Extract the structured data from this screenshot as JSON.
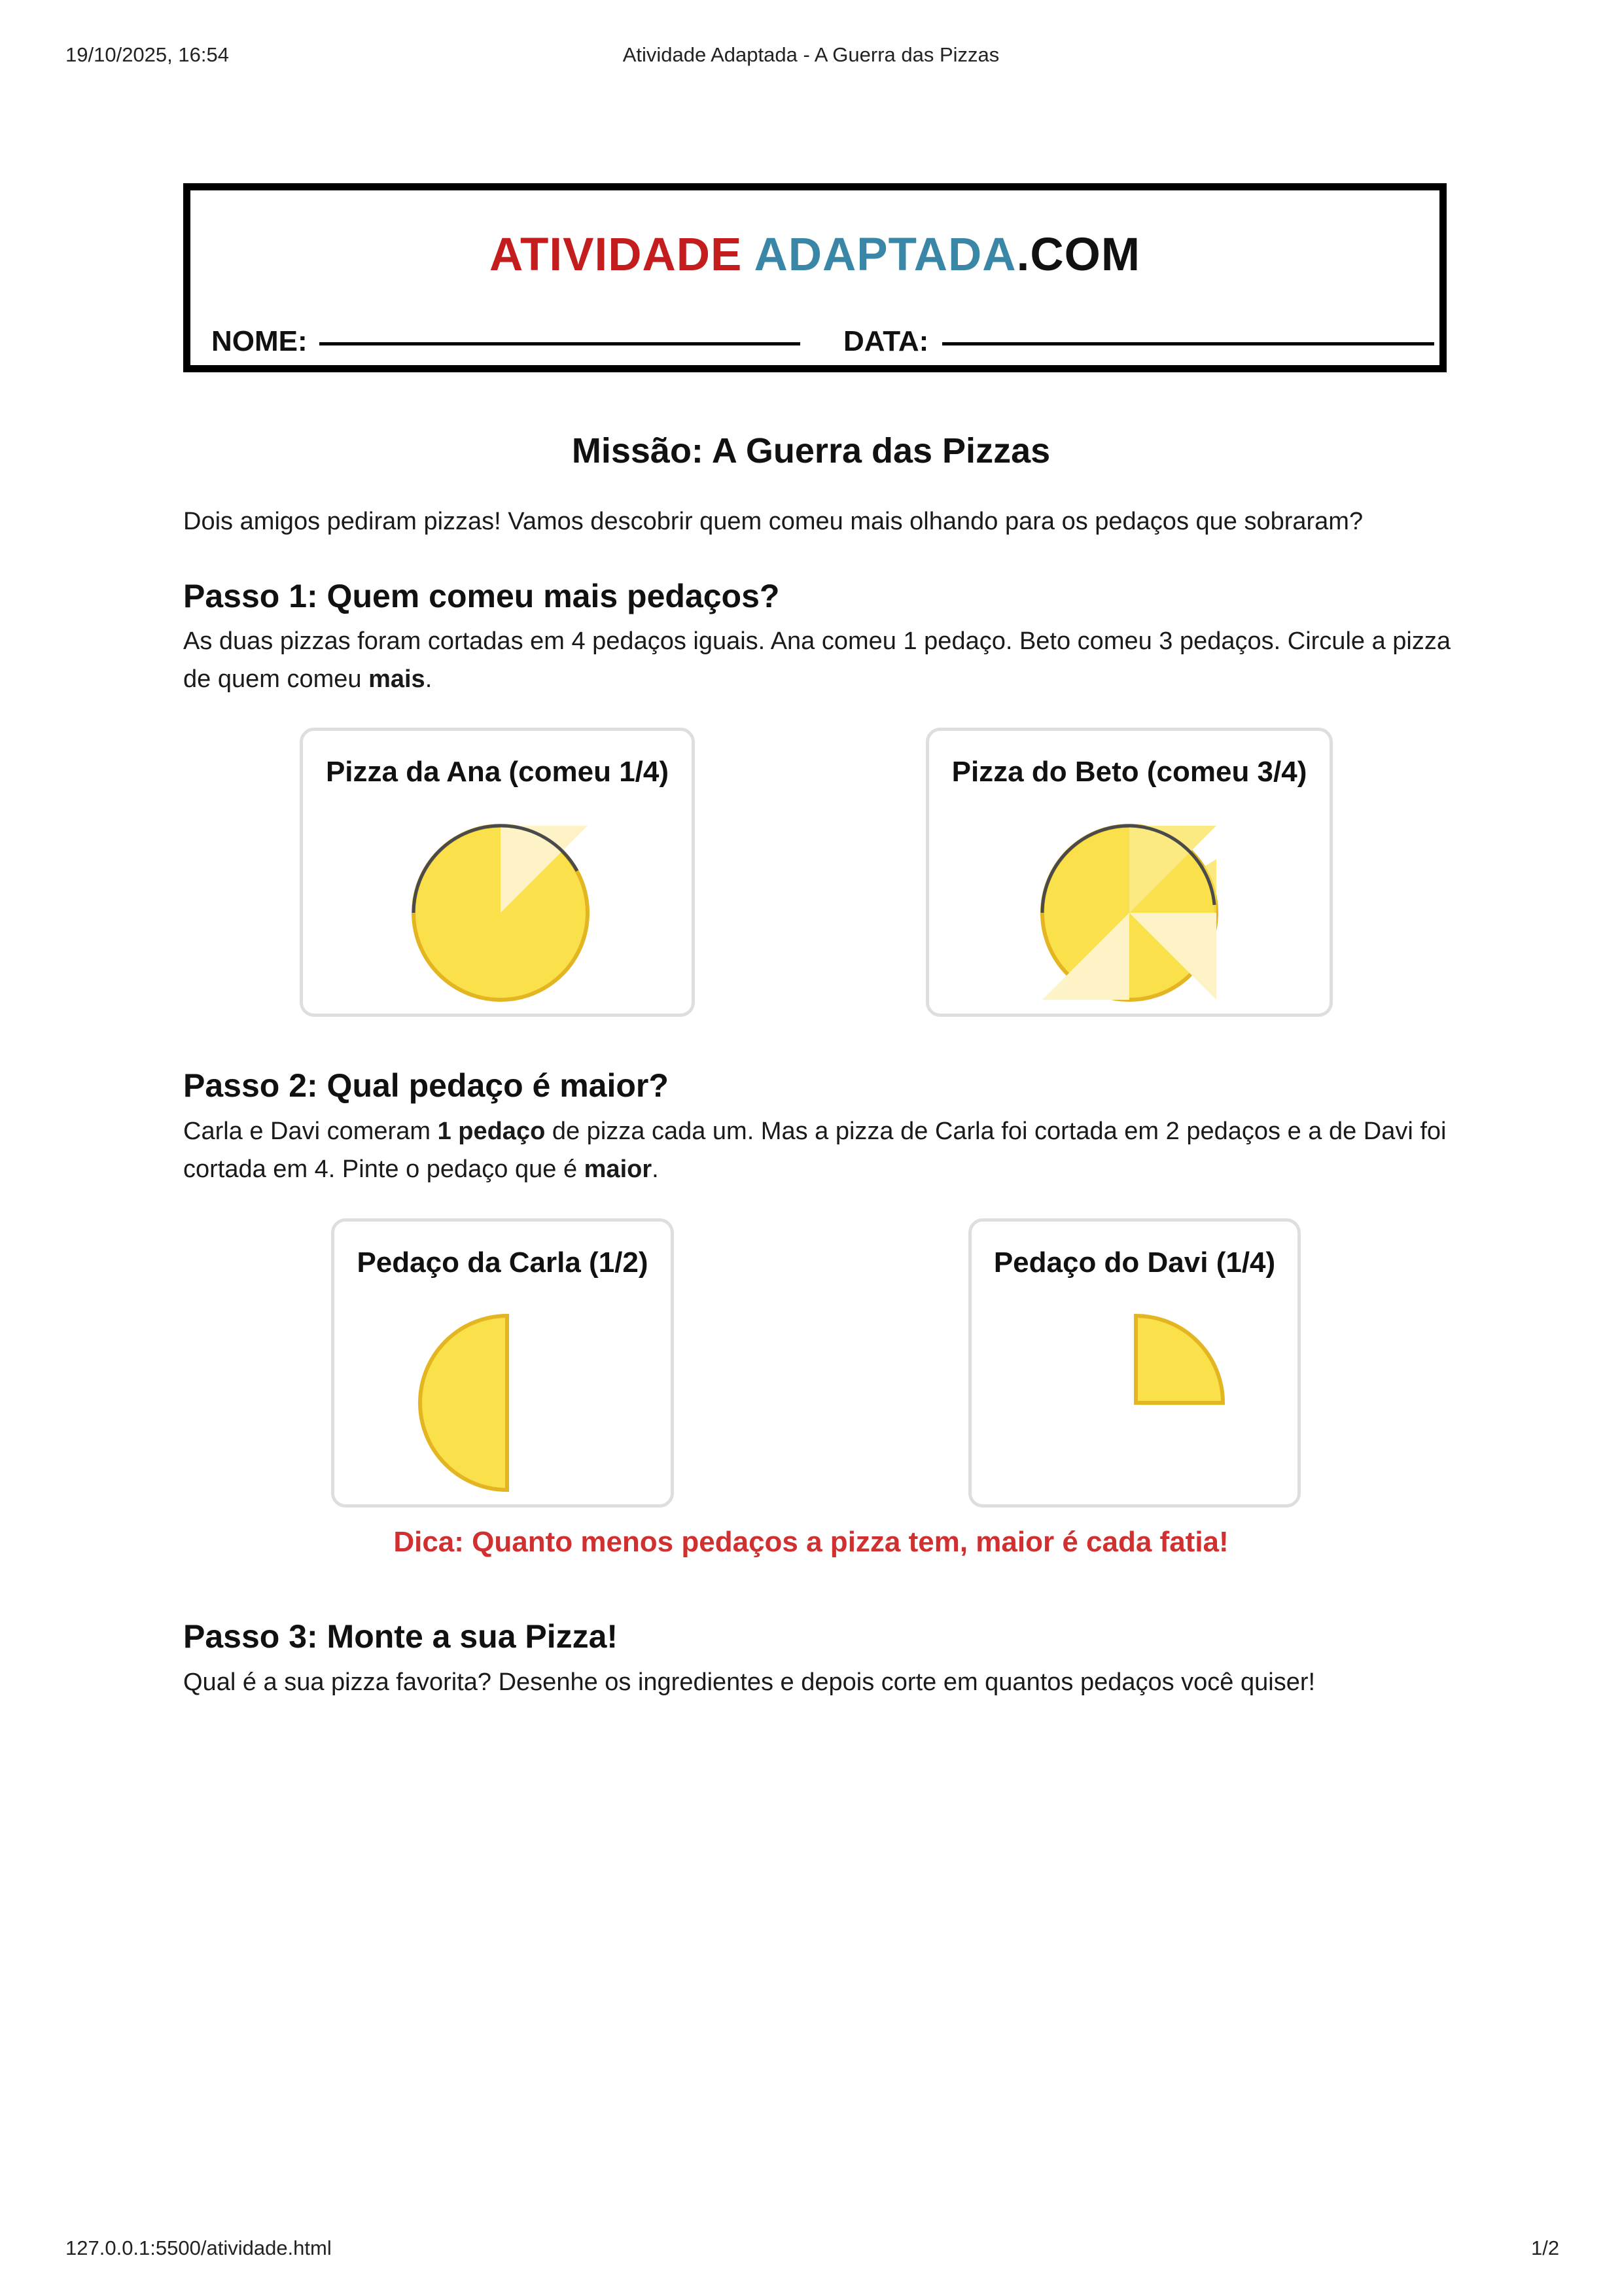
{
  "print_header": {
    "datetime": "19/10/2025, 16:54",
    "page_title": "Atividade Adaptada - A Guerra das Pizzas"
  },
  "print_footer": {
    "url": "127.0.0.1:5500/atividade.html",
    "page": "1/2"
  },
  "brand": {
    "part1": "ATIVIDADE",
    "part2": "ADAPTADA",
    "part3": ".COM"
  },
  "form": {
    "name_label": "NOME:",
    "date_label": "DATA:"
  },
  "title": "Missão: A Guerra das Pizzas",
  "intro": "Dois amigos pediram pizzas! Vamos descobrir quem comeu mais olhando para os pedaços que sobraram?",
  "step1": {
    "heading": "Passo 1: Quem comeu mais pedaços?",
    "text_before": "As duas pizzas foram cortadas em 4 pedaços iguais. Ana comeu 1 pedaço. Beto comeu 3 pedaços. Circule a pizza de quem comeu ",
    "text_bold": "mais",
    "text_after": ".",
    "cards": [
      {
        "title": "Pizza da Ana (comeu 1/4)",
        "eaten": 1,
        "total": 4
      },
      {
        "title": "Pizza do Beto (comeu 3/4)",
        "eaten": 3,
        "total": 4
      }
    ]
  },
  "step2": {
    "heading": "Passo 2: Qual pedaço é maior?",
    "text_a": "Carla e Davi comeram ",
    "text_b": "1 pedaço",
    "text_c": " de pizza cada um. Mas a pizza de Carla foi cortada em 2 pedaços e a de Davi foi cortada em 4. Pinte o pedaço que é ",
    "text_d": "maior",
    "text_e": ".",
    "cards": [
      {
        "title": "Pedaço da Carla (1/2)",
        "fraction": 0.5
      },
      {
        "title": "Pedaço do Davi (1/4)",
        "fraction": 0.25
      }
    ],
    "tip": "Dica: Quanto menos pedaços a pizza tem, maior é cada fatia!"
  },
  "step3": {
    "heading": "Passo 3: Monte a sua Pizza!",
    "text": "Qual é a sua pizza favorita? Desenhe os ingredientes e depois corte em quantos pedaços você quiser!"
  },
  "colors": {
    "pizza_fill": "#fae04a",
    "pizza_crust": "#e3b520",
    "eaten_slice": "#fdf3c6",
    "brand_red": "#c41d1d",
    "brand_blue": "#3a86a6",
    "tip_red": "#d0302f"
  }
}
